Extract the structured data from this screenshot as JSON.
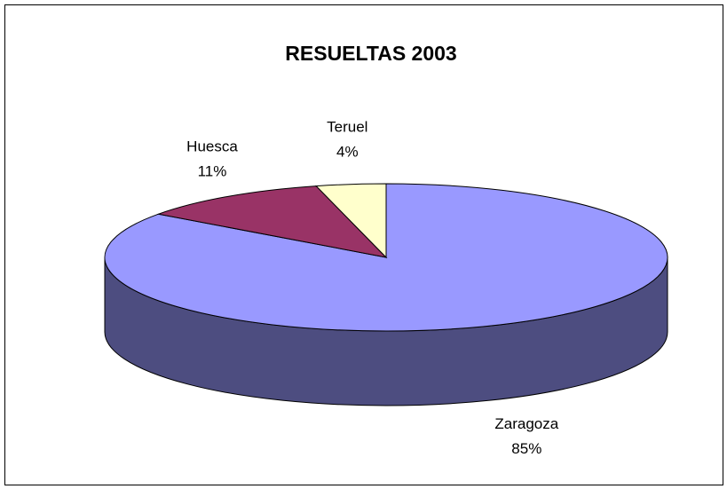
{
  "chart_data": {
    "type": "pie",
    "title": "RESUELTAS 2003",
    "categories": [
      "Zaragoza",
      "Huesca",
      "Teruel"
    ],
    "values": [
      85,
      11,
      4
    ],
    "value_labels": [
      "85%",
      "11%",
      "4%"
    ],
    "colors": [
      "#9999ff",
      "#993366",
      "#ffffcc"
    ],
    "three_d": true
  }
}
